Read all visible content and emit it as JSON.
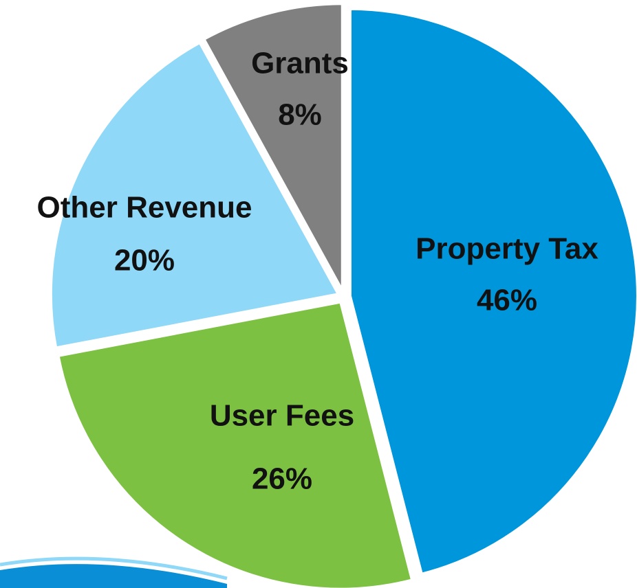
{
  "chart_data": {
    "type": "pie",
    "categories": [
      "Property Tax",
      "User Fees",
      "Other Revenue",
      "Grants"
    ],
    "values": [
      46,
      26,
      20,
      8
    ],
    "value_labels": [
      "46%",
      "26%",
      "20%",
      "8%"
    ],
    "colors": [
      "#0096db",
      "#7dc142",
      "#8fd8f7",
      "#808080"
    ]
  }
}
